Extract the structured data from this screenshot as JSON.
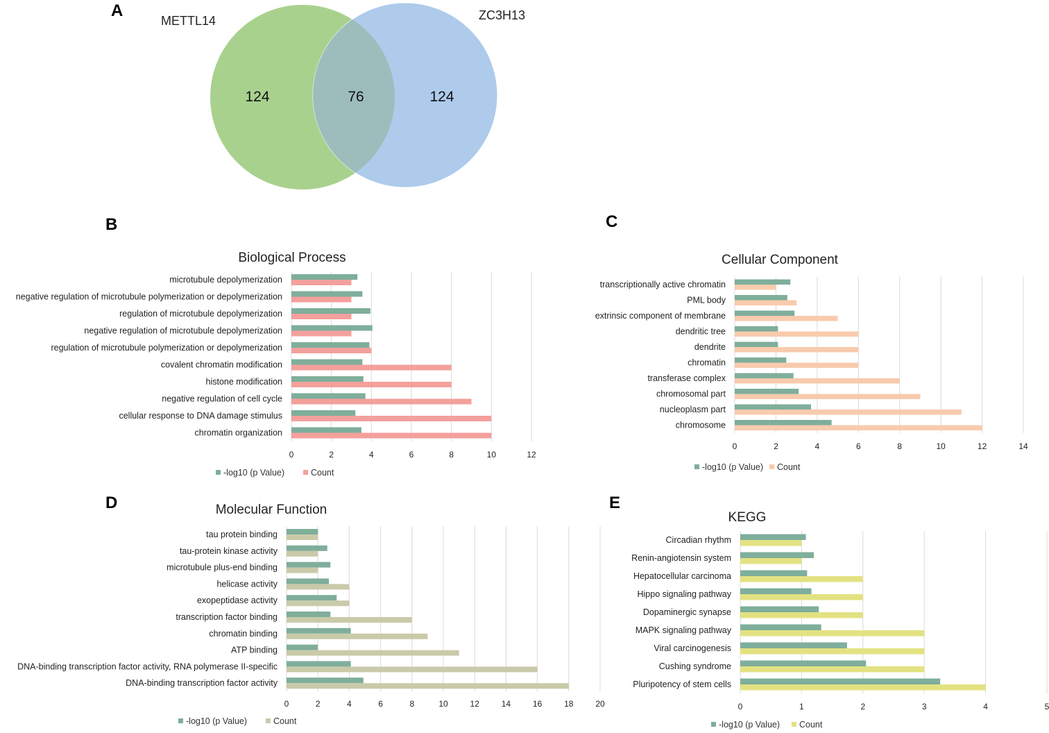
{
  "panel_letters": {
    "a": "A",
    "b": "B",
    "c": "C",
    "d": "D",
    "e": "E"
  },
  "venn": {
    "set1_label": "METTL14",
    "set2_label": "ZC3H13",
    "only_set1": "124",
    "overlap": "76",
    "only_set2": "124",
    "colors": {
      "set1": "#a9d18e",
      "set2": "#aecbeb",
      "overlap": "#9dbdbd"
    }
  },
  "chart_data": [
    {
      "id": "B",
      "type": "bar",
      "orientation": "horizontal",
      "title": "Biological Process",
      "categories": [
        "microtubule depolymerization",
        "negative regulation of microtubule polymerization or depolymerization",
        "regulation of microtubule depolymerization",
        "negative regulation of microtubule depolymerization",
        "regulation of microtubule polymerization or depolymerization",
        "covalent chromatin modification",
        "histone modification",
        "negative regulation of cell cycle",
        "cellular response to DNA damage stimulus",
        "chromatin organization"
      ],
      "series": [
        {
          "name": "-log10 (p Value)",
          "color": "#7fae9b",
          "values": [
            3.3,
            3.55,
            3.95,
            4.05,
            3.9,
            3.55,
            3.6,
            3.7,
            3.2,
            3.5
          ]
        },
        {
          "name": "Count",
          "color": "#f4a09c",
          "values": [
            3,
            3,
            3,
            3,
            4,
            8,
            8,
            9,
            10,
            10
          ]
        }
      ],
      "xlim": [
        0,
        12
      ],
      "xticks": [
        0,
        2,
        4,
        6,
        8,
        10,
        12
      ],
      "grid": true,
      "legend": "bottom"
    },
    {
      "id": "C",
      "type": "bar",
      "orientation": "horizontal",
      "title": "Cellular Component",
      "categories": [
        "transcriptionally active chromatin",
        "PML body",
        "extrinsic component of membrane",
        "dendritic tree",
        "dendrite",
        "chromatin",
        "transferase complex",
        "chromosomal part",
        "nucleoplasm part",
        "chromosome"
      ],
      "series": [
        {
          "name": "-log10 (p Value)",
          "color": "#7fae9b",
          "values": [
            2.7,
            2.55,
            2.9,
            2.1,
            2.1,
            2.5,
            2.85,
            3.1,
            3.7,
            4.7
          ]
        },
        {
          "name": "Count",
          "color": "#f8cbad",
          "values": [
            2,
            3,
            5,
            6,
            6,
            6,
            8,
            9,
            11,
            12
          ]
        }
      ],
      "xlim": [
        0,
        14
      ],
      "xticks": [
        0,
        2,
        4,
        6,
        8,
        10,
        12,
        14
      ],
      "grid": true,
      "legend": "bottom"
    },
    {
      "id": "D",
      "type": "bar",
      "orientation": "horizontal",
      "title": "Molecular Function",
      "categories": [
        "tau protein binding",
        "tau-protein kinase activity",
        "microtubule plus-end binding",
        "helicase activity",
        "exopeptidase activity",
        "transcription factor binding",
        "chromatin binding",
        "ATP binding",
        "DNA-binding transcription factor activity, RNA polymerase II-specific",
        "DNA-binding transcription factor activity"
      ],
      "series": [
        {
          "name": "-log10 (p Value)",
          "color": "#7fae9b",
          "values": [
            2,
            2.6,
            2.8,
            2.7,
            3.2,
            2.8,
            4.1,
            2,
            4.1,
            4.9
          ]
        },
        {
          "name": "Count",
          "color": "#c9caa9",
          "values": [
            2,
            2,
            2,
            4,
            4,
            8,
            9,
            11,
            16,
            18
          ]
        }
      ],
      "xlim": [
        0,
        20
      ],
      "xticks": [
        0,
        2,
        4,
        6,
        8,
        10,
        12,
        14,
        16,
        18,
        20
      ],
      "grid": true,
      "legend": "bottom"
    },
    {
      "id": "E",
      "type": "bar",
      "orientation": "horizontal",
      "title": "KEGG",
      "categories": [
        "Circadian rhythm",
        "Renin-angiotensin system",
        "Hepatocellular carcinoma",
        "Hippo signaling pathway",
        "Dopaminergic synapse",
        "MAPK signaling pathway",
        "Viral carcinogenesis",
        "Cushing syndrome",
        "Pluripotency of stem cells"
      ],
      "series": [
        {
          "name": "-log10 (p Value)",
          "color": "#7fae9b",
          "values": [
            1.07,
            1.2,
            1.09,
            1.16,
            1.28,
            1.32,
            1.74,
            2.05,
            3.26
          ]
        },
        {
          "name": "Count",
          "color": "#e3e282",
          "values": [
            1,
            1,
            2,
            2,
            2,
            3,
            3,
            3,
            4
          ]
        }
      ],
      "xlim": [
        0,
        5
      ],
      "xticks": [
        0,
        1,
        2,
        3,
        4,
        5
      ],
      "grid": true,
      "legend": "bottom"
    }
  ]
}
